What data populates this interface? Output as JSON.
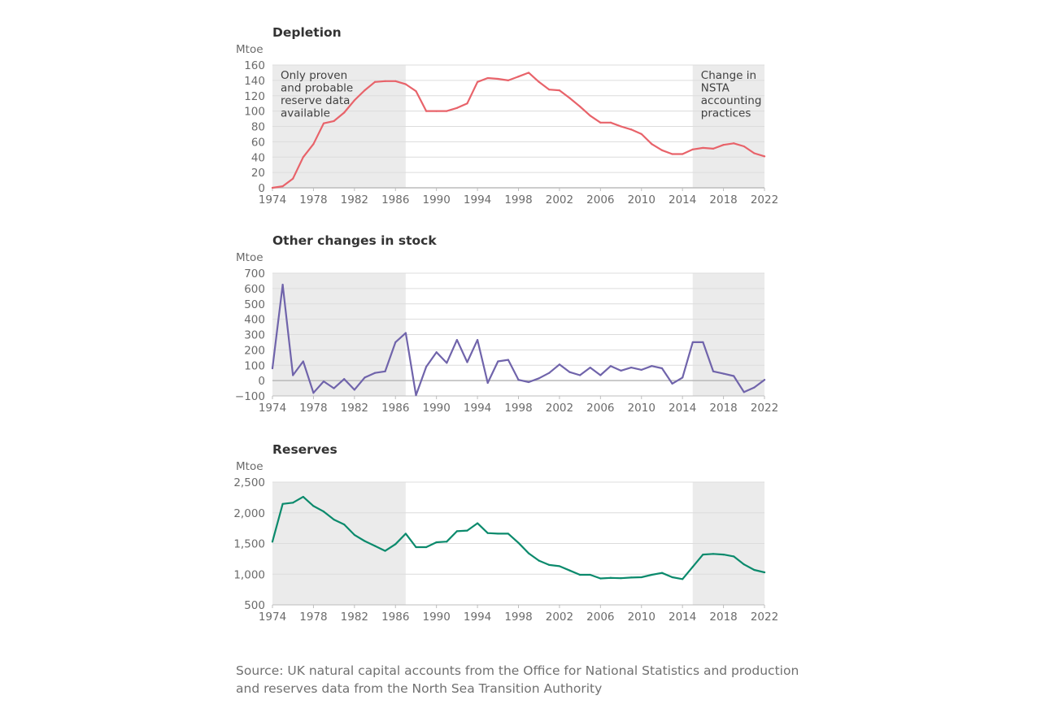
{
  "chart_data": [
    {
      "type": "line",
      "title": "Depletion",
      "unit": "Mtoe",
      "yticks": [
        "0",
        "20",
        "40",
        "60",
        "80",
        "100",
        "120",
        "140",
        "160"
      ],
      "ylim": [
        0,
        160
      ],
      "xticks": [
        "1974",
        "1978",
        "1982",
        "1986",
        "1990",
        "1994",
        "1998",
        "2002",
        "2006",
        "2010",
        "2014",
        "2018",
        "2022"
      ],
      "xlim": [
        1974,
        2022
      ],
      "color": "#e8636a",
      "shaded_ranges": [
        [
          1974,
          1987
        ],
        [
          2015,
          2022
        ]
      ],
      "annotations": [
        {
          "lines": [
            "Only proven",
            "and probable",
            "reserve data",
            "available"
          ]
        },
        {
          "lines": [
            "Change in",
            "NSTA",
            "accounting",
            "practices"
          ]
        }
      ],
      "x": [
        1974,
        1975,
        1976,
        1977,
        1978,
        1979,
        1980,
        1981,
        1982,
        1983,
        1984,
        1985,
        1986,
        1987,
        1988,
        1989,
        1990,
        1991,
        1992,
        1993,
        1994,
        1995,
        1996,
        1997,
        1998,
        1999,
        2000,
        2001,
        2002,
        2003,
        2004,
        2005,
        2006,
        2007,
        2008,
        2009,
        2010,
        2011,
        2012,
        2013,
        2014,
        2015,
        2016,
        2017,
        2018,
        2019,
        2020,
        2021,
        2022
      ],
      "values": [
        0,
        2,
        12,
        40,
        57,
        84,
        87,
        98,
        114,
        127,
        138,
        139,
        139,
        135,
        126,
        100,
        100,
        100,
        104,
        110,
        138,
        143,
        142,
        140,
        145,
        150,
        138,
        128,
        127,
        117,
        106,
        94,
        85,
        85,
        80,
        76,
        70,
        57,
        49,
        44,
        44,
        50,
        52,
        51,
        56,
        58,
        54,
        45,
        41
      ]
    },
    {
      "type": "line",
      "title": "Other changes in stock",
      "unit": "Mtoe",
      "yticks": [
        "−100",
        "0",
        "100",
        "200",
        "300",
        "400",
        "500",
        "600",
        "700"
      ],
      "ylim": [
        -100,
        700
      ],
      "xticks": [
        "1974",
        "1978",
        "1982",
        "1986",
        "1990",
        "1994",
        "1998",
        "2002",
        "2006",
        "2010",
        "2014",
        "2018",
        "2022"
      ],
      "xlim": [
        1974,
        2022
      ],
      "color": "#7064ab",
      "shaded_ranges": [
        [
          1974,
          1987
        ],
        [
          2015,
          2022
        ]
      ],
      "x": [
        1974,
        1975,
        1976,
        1977,
        1978,
        1979,
        1980,
        1981,
        1982,
        1983,
        1984,
        1985,
        1986,
        1987,
        1988,
        1989,
        1990,
        1991,
        1992,
        1993,
        1994,
        1995,
        1996,
        1997,
        1998,
        1999,
        2000,
        2001,
        2002,
        2003,
        2004,
        2005,
        2006,
        2007,
        2008,
        2009,
        2010,
        2011,
        2012,
        2013,
        2014,
        2015,
        2016,
        2017,
        2018,
        2019,
        2020,
        2021,
        2022
      ],
      "values": [
        80,
        625,
        35,
        125,
        -80,
        -5,
        -50,
        10,
        -60,
        20,
        50,
        60,
        250,
        310,
        -95,
        90,
        185,
        115,
        265,
        120,
        265,
        -15,
        125,
        135,
        5,
        -10,
        15,
        50,
        105,
        55,
        35,
        85,
        35,
        95,
        65,
        85,
        70,
        95,
        80,
        -20,
        20,
        250,
        250,
        60,
        45,
        30,
        -75,
        -45,
        5
      ]
    },
    {
      "type": "line",
      "title": "Reserves",
      "unit": "Mtoe",
      "yticks": [
        "500",
        "1,000",
        "1,500",
        "2,000",
        "2,500"
      ],
      "ylim": [
        500,
        2500
      ],
      "xticks": [
        "1974",
        "1978",
        "1982",
        "1986",
        "1990",
        "1994",
        "1998",
        "2002",
        "2006",
        "2010",
        "2014",
        "2018",
        "2022"
      ],
      "xlim": [
        1974,
        2022
      ],
      "color": "#0b8a6c",
      "shaded_ranges": [
        [
          1974,
          1987
        ],
        [
          2015,
          2022
        ]
      ],
      "x": [
        1974,
        1975,
        1976,
        1977,
        1978,
        1979,
        1980,
        1981,
        1982,
        1983,
        1984,
        1985,
        1986,
        1987,
        1988,
        1989,
        1990,
        1991,
        1992,
        1993,
        1994,
        1995,
        1996,
        1997,
        1998,
        1999,
        2000,
        2001,
        2002,
        2003,
        2004,
        2005,
        2006,
        2007,
        2008,
        2009,
        2010,
        2011,
        2012,
        2013,
        2014,
        2015,
        2016,
        2017,
        2018,
        2019,
        2020,
        2021,
        2022
      ],
      "values": [
        1530,
        2145,
        2165,
        2260,
        2110,
        2020,
        1890,
        1810,
        1640,
        1540,
        1460,
        1380,
        1490,
        1660,
        1440,
        1440,
        1520,
        1530,
        1700,
        1710,
        1830,
        1670,
        1660,
        1660,
        1510,
        1340,
        1220,
        1150,
        1130,
        1060,
        990,
        990,
        930,
        940,
        935,
        945,
        950,
        990,
        1020,
        950,
        920,
        1120,
        1320,
        1330,
        1320,
        1290,
        1160,
        1070,
        1030
      ]
    }
  ],
  "source": {
    "line1": "Source: UK natural capital accounts from the Office for National Statistics and production",
    "line2": "and reserves data from the North Sea Transition Authority"
  }
}
